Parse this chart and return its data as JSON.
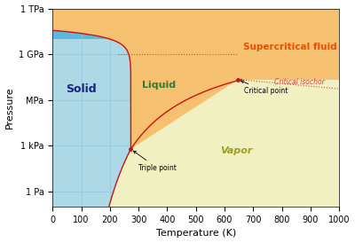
{
  "xlabel": "Temperature (K)",
  "ylabel": "Pressure",
  "xlim": [
    0,
    1000
  ],
  "ylim": [
    0.1,
    1000000000000.0
  ],
  "yticks": [
    1,
    1000.0,
    1000000.0,
    1000000000.0,
    1000000000000.0
  ],
  "ytick_labels": [
    "1 Pa",
    "1 kPa",
    "MPa",
    "1 GPa",
    "1 TPa"
  ],
  "xticks": [
    0,
    100,
    200,
    300,
    400,
    500,
    600,
    700,
    800,
    900,
    1000
  ],
  "triple_point_T": 273.16,
  "triple_point_P": 611.73,
  "critical_point_T": 647.1,
  "critical_point_P": 22064000,
  "solid_color": "#add8e6",
  "solid_color_top": "#5bb8e0",
  "liquid_color": "#d4e89a",
  "vapor_color": "#f0f0c0",
  "supercritical_color": "#f5c070",
  "grid_color": "#90c8d8",
  "line_color": "#cc1111",
  "isochor_color": "#dd4444",
  "solid_label_color": "#1a237e",
  "liquid_label_color": "#2e7d32",
  "vapor_label_color": "#9e9d24",
  "supercritical_label_color": "#e65100",
  "label_solid": "Solid",
  "label_liquid": "Liquid",
  "label_vapor": "Vapor",
  "label_supercritical": "Supercritical fluid",
  "label_critical_isochor": "Critical isochor",
  "label_triple_point": "Triple point",
  "label_critical_point": "Critical point"
}
